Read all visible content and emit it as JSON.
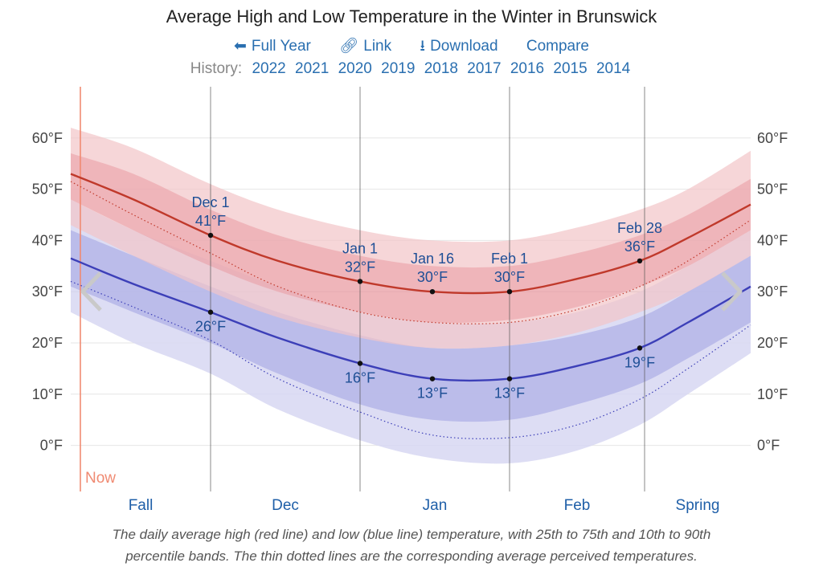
{
  "title": "Average High and Low Temperature in the Winter in Brunswick",
  "nav": {
    "full_year": "Full Year",
    "link": "Link",
    "download": "Download",
    "compare": "Compare"
  },
  "history": {
    "label": "History:",
    "years": [
      "2022",
      "2021",
      "2020",
      "2019",
      "2018",
      "2017",
      "2016",
      "2015",
      "2014"
    ]
  },
  "caption_line1": "The daily average high (red line) and low (blue line) temperature, with 25th to 75th and 10th to 90th",
  "caption_line2": "percentile bands. The thin dotted lines are the corresponding average perceived temperatures.",
  "now_label": "Now",
  "colors": {
    "high": "#c0392b",
    "low": "#3c3fb8",
    "high_band_outer": "#f2c4c8",
    "high_band_inner": "#e99ba2",
    "low_band_outer": "#d7d7f2",
    "low_band_inner": "#b5b6e8",
    "link": "#2a6fb0",
    "now": "#f08a72"
  },
  "chart_data": {
    "type": "line",
    "x_range": [
      "Nov 2",
      "Mar 23"
    ],
    "ylim": [
      -9,
      70
    ],
    "y_ticks": [
      "0°F",
      "10°F",
      "20°F",
      "30°F",
      "40°F",
      "50°F",
      "60°F"
    ],
    "y_tick_values": [
      0,
      10,
      20,
      30,
      40,
      50,
      60
    ],
    "grid": true,
    "x_sections": [
      "Fall",
      "Dec",
      "Jan",
      "Feb",
      "Spring"
    ],
    "x_section_dividers": [
      "Dec 1",
      "Jan 1",
      "Feb 1",
      "Mar 1"
    ],
    "now": "Nov 4",
    "x_dates": [
      "Nov 2",
      "Nov 15",
      "Dec 1",
      "Dec 15",
      "Jan 1",
      "Jan 16",
      "Feb 1",
      "Feb 15",
      "Feb 28",
      "Mar 10",
      "Mar 23"
    ],
    "series": [
      {
        "name": "high",
        "values": [
          53,
          48,
          41,
          36,
          32,
          30,
          30,
          32.5,
          36,
          40.5,
          47
        ]
      },
      {
        "name": "low",
        "values": [
          36.5,
          31.5,
          26,
          21,
          16,
          13,
          13,
          15.5,
          19,
          24,
          31
        ]
      },
      {
        "name": "high_p90",
        "values": [
          62,
          58,
          51,
          46,
          42,
          40,
          40,
          42.5,
          46,
          50,
          57.5
        ]
      },
      {
        "name": "high_p75",
        "values": [
          57,
          53,
          46,
          41,
          37,
          35,
          35,
          37.5,
          41,
          45,
          52
        ]
      },
      {
        "name": "high_p25",
        "values": [
          48,
          42,
          35,
          30,
          26,
          24,
          24.5,
          27,
          31,
          35,
          42
        ]
      },
      {
        "name": "high_p10",
        "values": [
          43,
          37,
          30,
          25,
          21,
          19,
          19.5,
          22,
          26,
          30,
          37
        ]
      },
      {
        "name": "low_p90",
        "values": [
          48,
          42,
          36,
          31,
          26,
          24,
          24,
          26,
          30,
          35,
          42
        ]
      },
      {
        "name": "low_p75",
        "values": [
          42,
          37,
          31,
          26,
          21.5,
          19,
          19.5,
          21.5,
          25,
          30,
          37
        ]
      },
      {
        "name": "low_p25",
        "values": [
          31,
          26,
          20,
          14,
          8,
          5,
          5,
          8,
          12,
          17,
          24
        ]
      },
      {
        "name": "low_p10",
        "values": [
          26,
          20,
          14,
          7,
          1,
          -2.5,
          -3.5,
          -1,
          4,
          10,
          18
        ]
      },
      {
        "name": "high_feels",
        "values": [
          51.5,
          45,
          37.5,
          31,
          26,
          24,
          24,
          26.5,
          31,
          36,
          44
        ]
      },
      {
        "name": "low_feels",
        "values": [
          32,
          27,
          20.5,
          13,
          6.5,
          2,
          1.5,
          4,
          9,
          15,
          23.5
        ]
      }
    ],
    "annotations": [
      {
        "date": "Dec 1",
        "series": "high",
        "label_date": "Dec 1",
        "label_value": "41°F",
        "pos": "above"
      },
      {
        "date": "Dec 1",
        "series": "low",
        "label_value": "26°F",
        "pos": "below"
      },
      {
        "date": "Jan 1",
        "series": "high",
        "label_date": "Jan 1",
        "label_value": "32°F",
        "pos": "above"
      },
      {
        "date": "Jan 1",
        "series": "low",
        "label_value": "16°F",
        "pos": "below"
      },
      {
        "date": "Jan 16",
        "series": "high",
        "label_date": "Jan 16",
        "label_value": "30°F",
        "pos": "above"
      },
      {
        "date": "Jan 16",
        "series": "low",
        "label_value": "13°F",
        "pos": "below"
      },
      {
        "date": "Feb 1",
        "series": "high",
        "label_date": "Feb 1",
        "label_value": "30°F",
        "pos": "above"
      },
      {
        "date": "Feb 1",
        "series": "low",
        "label_value": "13°F",
        "pos": "below"
      },
      {
        "date": "Feb 28",
        "series": "high",
        "label_date": "Feb 28",
        "label_value": "36°F",
        "pos": "above"
      },
      {
        "date": "Feb 28",
        "series": "low",
        "label_value": "19°F",
        "pos": "below"
      }
    ]
  }
}
